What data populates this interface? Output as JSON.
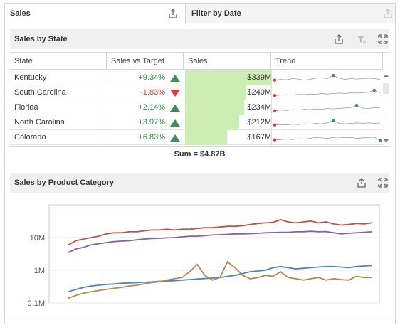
{
  "tabs": {
    "sales": "Sales",
    "filter": "Filter by Date"
  },
  "icons": {
    "export": "export-icon",
    "filter": "filter-clear-icon",
    "maximize": "maximize-icon"
  },
  "sales_by_state": {
    "title": "Sales by State",
    "columns": [
      "State",
      "Sales vs Target",
      "Sales",
      "Trend"
    ],
    "rows": [
      {
        "state": "Kentucky",
        "target": "+9.34%",
        "dir": "up",
        "sales": "$339M",
        "bar": 1.0,
        "trend": [
          0.3,
          0.4,
          0.35,
          0.5,
          0.45,
          0.3,
          0.4,
          0.55,
          0.6,
          0.5,
          0.9,
          0.55,
          0.4,
          0.5,
          0.45,
          0.5,
          0.55,
          0.5,
          0.4
        ],
        "peak": 10
      },
      {
        "state": "South Carolina",
        "target": "-1.83%",
        "dir": "down",
        "sales": "$240M",
        "bar": 0.71,
        "trend": [
          0.25,
          0.3,
          0.35,
          0.3,
          0.4,
          0.35,
          0.45,
          0.4,
          0.5,
          0.45,
          0.5,
          0.55,
          0.5,
          0.6,
          0.55,
          0.6,
          0.65,
          0.9,
          0.6
        ],
        "peak": 17
      },
      {
        "state": "Florida",
        "target": "+2.14%",
        "dir": "up",
        "sales": "$234M",
        "bar": 0.69,
        "trend": [
          0.2,
          0.3,
          0.25,
          0.35,
          0.3,
          0.4,
          0.35,
          0.45,
          0.4,
          0.5,
          0.45,
          0.5,
          0.55,
          0.6,
          0.9,
          0.55,
          0.5,
          0.6,
          0.55
        ],
        "peak": 14
      },
      {
        "state": "North Carolina",
        "target": "+3.97%",
        "dir": "up",
        "sales": "$212M",
        "bar": 0.63,
        "trend": [
          0.3,
          0.35,
          0.3,
          0.4,
          0.35,
          0.45,
          0.4,
          0.5,
          0.45,
          0.55,
          0.9,
          0.5,
          0.45,
          0.5,
          0.55,
          0.5,
          0.55,
          0.5,
          0.55
        ],
        "peak": 10
      },
      {
        "state": "Colorado",
        "target": "+6.83%",
        "dir": "up",
        "sales": "$167M",
        "bar": 0.49,
        "trend": [
          0.3,
          0.35,
          0.4,
          0.35,
          0.45,
          0.4,
          0.5,
          0.6,
          0.55,
          0.5,
          0.6,
          0.65,
          0.55,
          0.6,
          0.5,
          0.55,
          0.6,
          0.65,
          0.2
        ],
        "peak": 18
      }
    ],
    "sum": "Sum = $4.87B"
  },
  "product_category": {
    "title": "Sales by Product Category"
  },
  "chart_data": {
    "type": "line",
    "yscale": "log",
    "ylim": [
      0.1,
      100
    ],
    "yticks": [
      "10M",
      "1M",
      "0.1M"
    ],
    "ytick_values": [
      10,
      1,
      0.1
    ],
    "series": [
      {
        "color": "#c0504d",
        "values": [
          6,
          8,
          9,
          10,
          11,
          13,
          14,
          14,
          15,
          15,
          16,
          17,
          17,
          18,
          17,
          18,
          18,
          19,
          20,
          20,
          21,
          22,
          22,
          23,
          25,
          27,
          28,
          29,
          35,
          30,
          28,
          30,
          32,
          28,
          30,
          26,
          24,
          25,
          27,
          26,
          28
        ]
      },
      {
        "color": "#8064a2",
        "values": [
          3.5,
          4.5,
          5,
          6,
          6.5,
          7,
          7.5,
          7.8,
          8,
          8.5,
          9,
          9.3,
          9.5,
          9.8,
          10,
          10.5,
          11,
          11,
          11.5,
          12,
          12.2,
          12.5,
          13,
          13,
          13.2,
          13.5,
          14,
          14.2,
          14.5,
          14.5,
          15,
          15,
          15.5,
          15,
          15.2,
          14,
          13,
          13.5,
          14,
          14.5,
          15
        ]
      },
      {
        "color": "#4f81bd",
        "values": [
          0.22,
          0.26,
          0.3,
          0.33,
          0.35,
          0.37,
          0.38,
          0.4,
          0.41,
          0.42,
          0.43,
          0.44,
          0.46,
          0.47,
          0.48,
          0.5,
          0.52,
          0.54,
          0.56,
          0.58,
          0.6,
          0.65,
          0.7,
          0.8,
          0.9,
          0.95,
          1.0,
          1.2,
          1.3,
          1.2,
          1.1,
          1.15,
          1.2,
          1.25,
          1.3,
          1.3,
          1.25,
          1.2,
          1.3,
          1.35,
          1.4
        ]
      },
      {
        "color": "#b08b4f",
        "values": [
          0.14,
          0.17,
          0.2,
          0.22,
          0.24,
          0.26,
          0.28,
          0.3,
          0.33,
          0.35,
          0.38,
          0.42,
          0.45,
          0.5,
          0.55,
          0.6,
          0.9,
          1.5,
          0.7,
          0.5,
          0.6,
          1.8,
          1.2,
          0.7,
          0.55,
          0.6,
          0.7,
          0.65,
          0.9,
          0.6,
          0.55,
          0.5,
          0.55,
          0.6,
          0.5,
          0.55,
          0.52,
          0.5,
          0.65,
          0.6,
          0.6
        ]
      }
    ]
  }
}
